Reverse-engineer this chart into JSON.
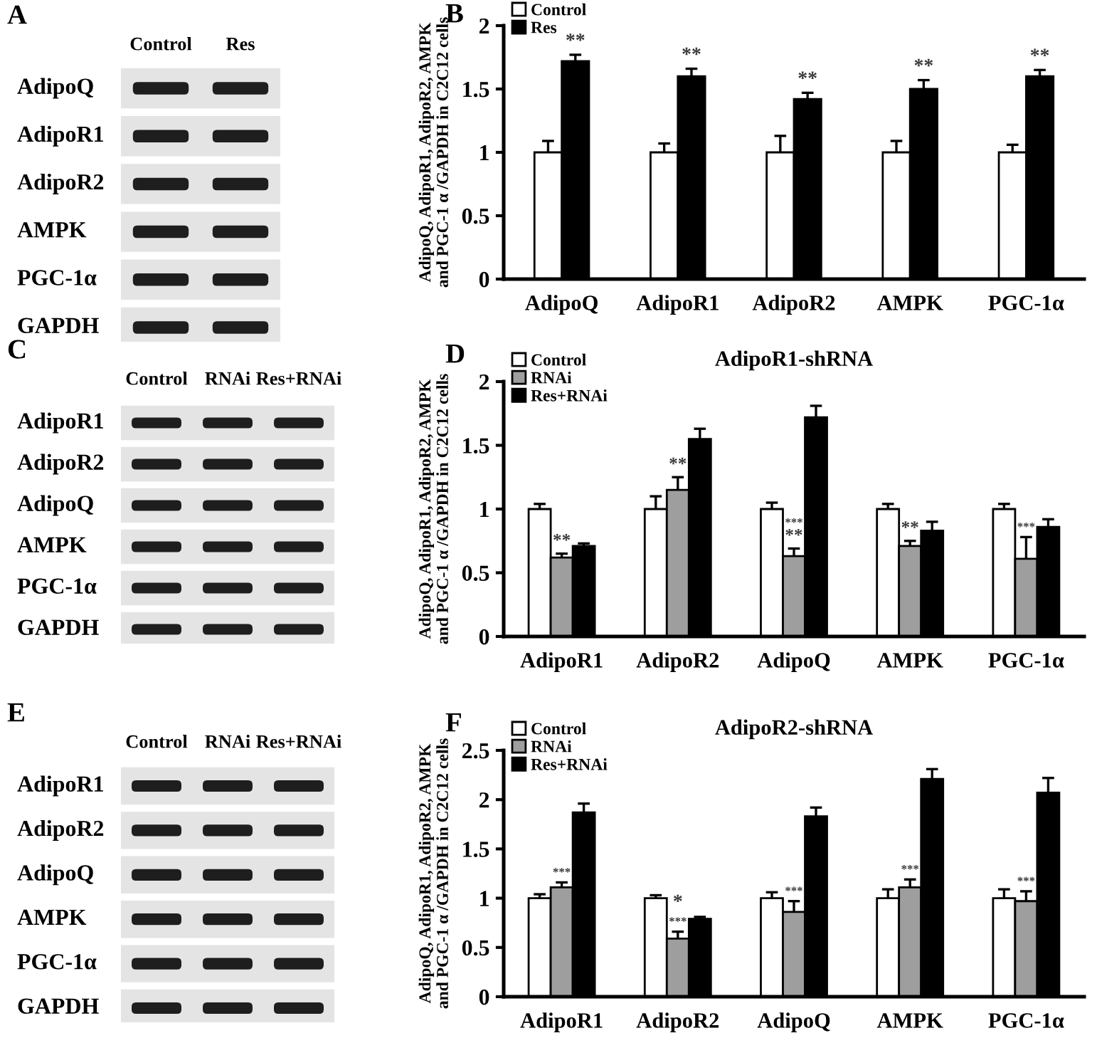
{
  "chart_data": [
    {
      "type": "other",
      "categories": [
        "Control",
        "Res"
      ],
      "y_categories": [
        "AdipoQ",
        "AdipoR1",
        "AdipoR2",
        "AMPK",
        "PGC-1α",
        "GAPDH"
      ],
      "annotations": [
        "A"
      ]
    },
    {
      "type": "bar",
      "categories": [
        "AdipoQ",
        "AdipoR1",
        "AdipoR2",
        "AMPK",
        "PGC-1α"
      ],
      "ylabel": "AdipoQ, AdipoR1, AdipoR2, AMPK\nand PGC-1 α /GAPDH in C2C12 cells",
      "ylim": [
        0,
        2
      ],
      "yticks": [
        0,
        0.5,
        1,
        1.5,
        2
      ],
      "legend": "top left",
      "series": [
        {
          "name": "Control",
          "color": "#ffffff",
          "values": [
            1,
            1,
            1,
            1,
            1
          ],
          "errors": [
            [
              1,
              1.09
            ],
            [
              1,
              1.07
            ],
            [
              1,
              1.13
            ],
            [
              1,
              1.09
            ],
            [
              1,
              1.06
            ]
          ]
        },
        {
          "name": "Res",
          "color": "#000000",
          "values": [
            1.72,
            1.6,
            1.42,
            1.5,
            1.6
          ],
          "errors": [
            [
              1.72,
              1.77
            ],
            [
              1.6,
              1.66
            ],
            [
              1.42,
              1.47
            ],
            [
              1.5,
              1.57
            ],
            [
              1.6,
              1.65
            ]
          ]
        }
      ],
      "annotations": [
        "B",
        {
          "text": "**",
          "x": "AdipoQ",
          "y": 1.72
        },
        {
          "text": "**",
          "x": "AdipoR1",
          "y": 1.6
        },
        {
          "text": "**",
          "x": "AdipoR2",
          "y": 1.42
        },
        {
          "text": "**",
          "x": "AMPK",
          "y": 1.5
        },
        {
          "text": "**",
          "x": "PGC-1α",
          "y": 1.6
        }
      ]
    },
    {
      "type": "other",
      "categories": [
        "Control",
        "RNAi",
        "Res+RNAi"
      ],
      "y_categories": [
        "AdipoR1",
        "AdipoR2",
        "AdipoQ",
        "AMPK",
        "PGC-1α",
        "GAPDH"
      ],
      "annotations": [
        "C"
      ]
    },
    {
      "type": "bar",
      "title": "AdipoR1-shRNA",
      "categories": [
        "AdipoR1",
        "AdipoR2",
        "AdipoQ",
        "AMPK",
        "PGC-1α"
      ],
      "ylabel": "AdipoQ, AdipoR1, AdipoR2, AMPK\nand PGC-1 α /GAPDH in C2C12 cells",
      "ylim": [
        0,
        2
      ],
      "yticks": [
        0,
        0.5,
        1,
        1.5,
        2
      ],
      "legend": "top left",
      "series": [
        {
          "name": "Control",
          "color": "#ffffff",
          "values": [
            1,
            1,
            1,
            1,
            1
          ],
          "errors": [
            [
              1,
              1.04
            ],
            [
              1,
              1.1
            ],
            [
              1,
              1.05
            ],
            [
              1,
              1.04
            ],
            [
              1,
              1.04
            ]
          ]
        },
        {
          "name": "RNAi",
          "color": "#9e9e9e",
          "values": [
            0.62,
            1.15,
            0.63,
            0.71,
            0.61
          ],
          "errors": [
            [
              0.62,
              0.65
            ],
            [
              1.15,
              1.25
            ],
            [
              0.63,
              0.69
            ],
            [
              0.71,
              0.75
            ],
            [
              0.61,
              0.78
            ]
          ]
        },
        {
          "name": "Res+RNAi",
          "color": "#000000",
          "values": [
            0.71,
            1.55,
            1.72,
            0.83,
            0.86
          ],
          "errors": [
            [
              0.71,
              0.73
            ],
            [
              1.55,
              1.63
            ],
            [
              1.72,
              1.81
            ],
            [
              0.83,
              0.9
            ],
            [
              0.86,
              0.92
            ]
          ]
        }
      ],
      "annotations": [
        "D",
        {
          "text": "**",
          "x": "AdipoR1",
          "y": 0.62
        },
        {
          "text": "**",
          "x": "AdipoR2",
          "y": 1.15
        },
        {
          "text": "**",
          "x": "AdipoQ",
          "y": 0.63
        },
        {
          "text": "***",
          "x": "AdipoQ",
          "y": 0.63
        },
        {
          "text": "**",
          "x": "AMPK",
          "y": 0.71
        },
        {
          "text": "***",
          "x": "PGC-1α",
          "y": 0.61
        }
      ]
    },
    {
      "type": "other",
      "categories": [
        "Control",
        "RNAi",
        "Res+RNAi"
      ],
      "y_categories": [
        "AdipoR1",
        "AdipoR2",
        "AdipoQ",
        "AMPK",
        "PGC-1α",
        "GAPDH"
      ],
      "annotations": [
        "E"
      ]
    },
    {
      "type": "bar",
      "title": "AdipoR2-shRNA",
      "categories": [
        "AdipoR1",
        "AdipoR2",
        "AdipoQ",
        "AMPK",
        "PGC-1α"
      ],
      "ylabel": "AdipoQ, AdipoR1, AdipoR2, AMPK\nand PGC-1 α /GAPDH in C2C12 cells",
      "ylim": [
        0,
        2.5
      ],
      "yticks": [
        0,
        0.5,
        1,
        1.5,
        2,
        2.5
      ],
      "legend": "top left",
      "series": [
        {
          "name": "Control",
          "color": "#ffffff",
          "values": [
            1,
            1,
            1,
            1,
            1
          ],
          "errors": [
            [
              1,
              1.04
            ],
            [
              1,
              1.03
            ],
            [
              1,
              1.06
            ],
            [
              1,
              1.09
            ],
            [
              1,
              1.09
            ]
          ]
        },
        {
          "name": "RNAi",
          "color": "#9e9e9e",
          "values": [
            1.11,
            0.59,
            0.86,
            1.11,
            0.97
          ],
          "errors": [
            [
              1.11,
              1.16
            ],
            [
              0.59,
              0.66
            ],
            [
              0.86,
              0.97
            ],
            [
              1.11,
              1.19
            ],
            [
              0.97,
              1.07
            ]
          ]
        },
        {
          "name": "Res+RNAi",
          "color": "#000000",
          "values": [
            1.87,
            0.79,
            1.83,
            2.21,
            2.07
          ],
          "errors": [
            [
              1.87,
              1.96
            ],
            [
              0.79,
              0.81
            ],
            [
              1.83,
              1.92
            ],
            [
              2.21,
              2.31
            ],
            [
              2.07,
              2.22
            ]
          ]
        }
      ],
      "annotations": [
        "F",
        {
          "text": "***",
          "x": "AdipoR1",
          "y": 1.11
        },
        {
          "text": "***",
          "x": "AdipoR2",
          "y": 0.59
        },
        {
          "text": "*",
          "x": "AdipoR2",
          "y": 0.59
        },
        {
          "text": "***",
          "x": "AdipoQ",
          "y": 0.86
        },
        {
          "text": "***",
          "x": "AMPK",
          "y": 1.11
        },
        {
          "text": "***",
          "x": "PGC-1α",
          "y": 0.97
        }
      ]
    }
  ]
}
